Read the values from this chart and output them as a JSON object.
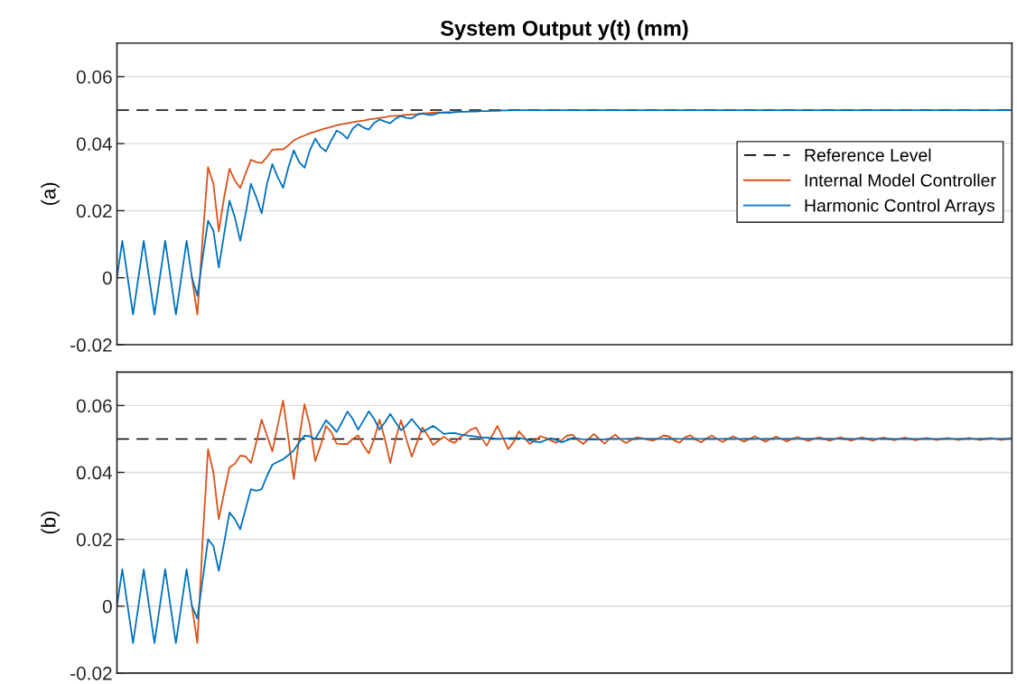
{
  "chart_data": [
    {
      "type": "line",
      "title": "System Output y(t) (mm)",
      "ylabel": "(a)",
      "ylim": [
        -0.02,
        0.07
      ],
      "yticks": [
        -0.02,
        0,
        0.02,
        0.04,
        0.06
      ],
      "grid": "y",
      "legend": "right",
      "line_style": "solid",
      "categories": [
        null,
        null,
        null,
        null,
        null,
        null,
        null,
        null,
        null,
        null,
        null,
        null,
        null,
        null,
        null,
        null,
        null,
        null,
        null,
        null,
        null,
        null,
        null,
        null,
        null,
        null,
        null,
        null,
        null,
        null,
        null,
        null,
        null,
        null,
        null,
        null,
        null,
        null,
        null,
        null,
        null,
        null,
        null,
        null,
        null,
        null,
        null,
        null,
        null,
        null,
        null,
        null,
        null,
        null,
        null,
        null,
        null,
        null,
        null,
        null,
        null,
        null,
        null,
        null,
        null,
        null,
        null,
        null,
        null,
        null,
        null,
        null,
        null,
        null,
        null,
        null,
        null,
        null,
        null,
        null,
        null,
        null,
        null,
        null,
        null,
        null,
        null,
        null,
        null,
        null,
        null,
        null,
        null,
        null,
        null,
        null,
        null,
        null,
        null,
        null,
        null,
        null,
        null,
        null,
        null,
        null,
        null,
        null,
        null,
        null,
        null,
        null,
        null,
        null,
        null,
        null,
        null,
        null,
        null,
        null,
        null,
        null,
        null,
        null,
        null,
        null,
        null,
        null,
        null,
        null,
        null,
        null,
        null,
        null,
        null,
        null,
        null,
        null,
        null,
        null,
        null,
        null,
        null,
        null,
        null,
        null,
        null,
        null,
        null,
        null,
        null,
        null,
        null,
        null,
        null,
        null,
        null,
        null,
        null,
        null,
        null,
        null,
        null,
        null,
        null,
        null,
        null,
        null
      ],
      "ref_lines": [
        {
          "axis": "y",
          "value": 0.05,
          "label": "Reference Level",
          "color": "#000000",
          "line_style": "dashed"
        }
      ],
      "series": [
        {
          "name": "Internal Model Controller",
          "color": "#d95319",
          "values": [
            null,
            null,
            null,
            null,
            null,
            null,
            null,
            null,
            null,
            null,
            null,
            null,
            null,
            null,
            0,
            -0.011,
            0.012,
            0.033,
            0.028,
            0.0138,
            0.024,
            0.0325,
            0.029,
            0.0268,
            0.031,
            0.0352,
            0.0345,
            0.0342,
            0.036,
            0.0382,
            0.0383,
            0.0383,
            0.0395,
            0.041,
            0.0418,
            0.0424,
            0.0431,
            0.0436,
            0.0441,
            0.0446,
            0.045,
            0.0455,
            0.0458,
            0.0461,
            0.0464,
            0.0467,
            0.0469,
            0.0472,
            0.0474,
            0.0477,
            0.0479,
            0.0482,
            0.0483,
            0.0484,
            0.0486,
            0.0487,
            0.0488,
            0.049,
            0.0491,
            0.0492,
            0.0493,
            0.0493,
            0.0494,
            null,
            null,
            null,
            null,
            null,
            null,
            null,
            null,
            null,
            null,
            null,
            null,
            null,
            null,
            null,
            null,
            null,
            null,
            null,
            null,
            null,
            null,
            null,
            null,
            null,
            null,
            null,
            null,
            null,
            null,
            null,
            null,
            null,
            null,
            null,
            null,
            null,
            null,
            null,
            null,
            null,
            null,
            null,
            null,
            null,
            null,
            null,
            null,
            null,
            null,
            null,
            null,
            null,
            null,
            null,
            null,
            null,
            null,
            null,
            null,
            null,
            null,
            null,
            null,
            null,
            null,
            null,
            null,
            null,
            null,
            null,
            null,
            null,
            null,
            null,
            null,
            null,
            null,
            null,
            null,
            null,
            null,
            null,
            null,
            null,
            null,
            null,
            null,
            null,
            null,
            null,
            null,
            null,
            null,
            null,
            null,
            null,
            null,
            null,
            null,
            null,
            null,
            null,
            null,
            null
          ]
        },
        {
          "name": "Harmonic Control Arrays",
          "color": "#0072bd",
          "values": [
            0,
            0.011,
            0,
            -0.011,
            0,
            0.011,
            0,
            -0.011,
            0,
            0.011,
            0,
            -0.011,
            0,
            0.011,
            0,
            -0.0054,
            0.006,
            0.017,
            0.014,
            0.003,
            0.013,
            0.023,
            0.018,
            0.011,
            0.019,
            0.028,
            0.024,
            0.0192,
            0.028,
            0.0339,
            0.03,
            0.0268,
            0.033,
            0.038,
            0.0345,
            0.0328,
            0.038,
            0.0415,
            0.039,
            0.0377,
            0.041,
            0.0439,
            0.043,
            0.0415,
            0.0445,
            0.0458,
            0.0448,
            0.0442,
            0.0462,
            0.0472,
            0.0466,
            0.0461,
            0.0475,
            0.0482,
            0.0477,
            0.0475,
            0.0486,
            0.049,
            0.0486,
            0.0486,
            0.0491,
            0.0493,
            0.0492,
            0.0494,
            0.0495,
            0.0495,
            0.0496,
            0.0496,
            0.0497,
            0.0497,
            0.0498,
            0.0498,
            0.0499,
            0.0499,
            0.05,
            0.05,
            0.05,
            0.05,
            0.05,
            0.05,
            0.05,
            0.05,
            0.05,
            0.05,
            0.05,
            0.05,
            0.05,
            0.05,
            0.05,
            0.05,
            0.05,
            0.05,
            0.05,
            0.05,
            0.05,
            0.05,
            0.05,
            0.05,
            0.05,
            0.05,
            0.05,
            0.05,
            0.05,
            0.05,
            0.05,
            0.05,
            0.05,
            0.05,
            0.05,
            0.05,
            0.05,
            0.05,
            0.05,
            0.05,
            0.05,
            0.05,
            0.05,
            0.05,
            0.05,
            0.05,
            0.05,
            0.05,
            0.05,
            0.05,
            0.05,
            0.05,
            0.05,
            0.05,
            0.05,
            0.05,
            0.05,
            0.05,
            0.05,
            0.05,
            0.05,
            0.05,
            0.05,
            0.05,
            0.05,
            0.05,
            0.05,
            0.05,
            0.05,
            0.05,
            0.05,
            0.05,
            0.05,
            0.05,
            0.05,
            0.05,
            0.05,
            0.05,
            0.05,
            0.05,
            0.05,
            0.05,
            0.05,
            0.05,
            0.05,
            0.05,
            0.05,
            0.05,
            0.05,
            0.05,
            0.05,
            0.05,
            0.05,
            0.05
          ]
        }
      ]
    },
    {
      "type": "line",
      "ylabel": "(b)",
      "ylim": [
        -0.02,
        0.07
      ],
      "yticks": [
        -0.02,
        0,
        0.02,
        0.04,
        0.06
      ],
      "grid": "y",
      "line_style": "solid",
      "categories": [
        null,
        null,
        null,
        null,
        null,
        null,
        null,
        null,
        null,
        null,
        null,
        null,
        null,
        null,
        null,
        null,
        null,
        null,
        null,
        null,
        null,
        null,
        null,
        null,
        null,
        null,
        null,
        null,
        null,
        null,
        null,
        null,
        null,
        null,
        null,
        null,
        null,
        null,
        null,
        null,
        null,
        null,
        null,
        null,
        null,
        null,
        null,
        null,
        null,
        null,
        null,
        null,
        null,
        null,
        null,
        null,
        null,
        null,
        null,
        null,
        null,
        null,
        null,
        null,
        null,
        null,
        null,
        null,
        null,
        null,
        null,
        null,
        null,
        null,
        null,
        null,
        null,
        null,
        null,
        null,
        null,
        null,
        null,
        null,
        null,
        null,
        null,
        null,
        null,
        null,
        null,
        null,
        null,
        null,
        null,
        null,
        null,
        null,
        null,
        null,
        null,
        null,
        null,
        null,
        null,
        null,
        null,
        null,
        null,
        null,
        null,
        null,
        null,
        null,
        null,
        null,
        null,
        null,
        null,
        null,
        null,
        null,
        null,
        null,
        null,
        null,
        null,
        null,
        null,
        null,
        null,
        null,
        null,
        null,
        null,
        null,
        null,
        null,
        null,
        null,
        null,
        null,
        null,
        null,
        null,
        null,
        null,
        null,
        null,
        null,
        null,
        null,
        null,
        null,
        null,
        null,
        null,
        null,
        null,
        null,
        null,
        null,
        null,
        null,
        null,
        null,
        null,
        null
      ],
      "ref_lines": [
        {
          "axis": "y",
          "value": 0.05,
          "color": "#000000",
          "line_style": "dashed"
        }
      ],
      "series": [
        {
          "color": "#d95319",
          "values": [
            null,
            null,
            null,
            null,
            null,
            null,
            null,
            null,
            null,
            null,
            null,
            null,
            null,
            null,
            0,
            -0.011,
            0.02,
            0.047,
            0.04,
            0.026,
            0.034,
            0.0415,
            0.0426,
            0.045,
            0.0448,
            0.0428,
            0.049,
            0.0558,
            0.051,
            0.0463,
            0.054,
            0.0615,
            0.05,
            0.038,
            0.05,
            0.0604,
            0.054,
            0.0434,
            0.048,
            0.0539,
            0.052,
            0.0486,
            0.0485,
            0.0485,
            0.05,
            0.0511,
            0.048,
            0.0457,
            0.05,
            0.0558,
            0.05,
            0.0428,
            0.05,
            0.0556,
            0.05,
            0.0447,
            0.049,
            0.0534,
            0.051,
            0.0482,
            0.0495,
            0.0507,
            0.0495,
            0.0488,
            0.0505,
            0.0515,
            0.0528,
            0.0534,
            0.0505,
            0.048,
            0.051,
            0.0539,
            0.0505,
            0.047,
            0.049,
            0.0523,
            0.0505,
            0.0485,
            0.0495,
            0.0508,
            0.0503,
            0.0495,
            0.0489,
            0.0497,
            0.051,
            0.0513,
            0.0497,
            0.0485,
            0.05,
            0.0515,
            0.05,
            0.0486,
            0.0502,
            0.0513,
            0.0498,
            0.0488,
            0.0497,
            0.0505,
            0.0502,
            0.0498,
            0.0495,
            0.0502,
            0.051,
            0.0508,
            0.0495,
            0.0489,
            0.0505,
            0.0511,
            0.0498,
            0.049,
            0.0502,
            0.051,
            0.05,
            0.0491,
            0.05,
            0.0508,
            0.05,
            0.0492,
            0.05,
            0.0508,
            0.05,
            0.0492,
            0.05,
            0.0507,
            0.05,
            0.0493,
            0.05,
            0.0506,
            0.05,
            0.0494,
            0.05,
            0.0505,
            0.05,
            0.0495,
            0.05,
            0.0505,
            0.05,
            0.0495,
            0.05,
            0.0505,
            0.05,
            0.0495,
            0.05,
            0.0504,
            0.05,
            0.0496,
            0.05,
            0.0504,
            0.05,
            0.0496,
            0.05,
            0.0503,
            0.05,
            0.0497,
            0.05,
            0.0503,
            0.05,
            0.0497,
            0.05,
            0.0503,
            0.05,
            0.0497,
            0.05,
            0.0503,
            0.05,
            0.0497,
            0.05,
            0.0503
          ]
        },
        {
          "color": "#0072bd",
          "values": [
            0,
            0.011,
            0,
            -0.011,
            0,
            0.011,
            0,
            -0.011,
            0,
            0.011,
            0,
            -0.011,
            0,
            0.011,
            0,
            -0.0037,
            0.008,
            0.02,
            0.018,
            0.0106,
            0.019,
            0.028,
            0.026,
            0.023,
            0.029,
            0.035,
            0.0345,
            0.035,
            0.039,
            0.0423,
            0.0432,
            0.0439,
            0.0452,
            0.0466,
            0.049,
            0.051,
            0.0508,
            0.05,
            0.0528,
            0.0556,
            0.054,
            0.0521,
            0.055,
            0.0582,
            0.056,
            0.0528,
            0.0555,
            0.0583,
            0.056,
            0.0528,
            0.055,
            0.0575,
            0.055,
            0.0526,
            0.054,
            0.056,
            0.054,
            0.0521,
            0.053,
            0.0539,
            0.0528,
            0.0515,
            0.0517,
            0.0518,
            0.0514,
            0.0511,
            0.0509,
            0.0507,
            0.0505,
            0.0504,
            0.0502,
            0.05,
            0.0501,
            0.0502,
            0.0503,
            0.0503,
            0.05,
            0.0496,
            0.0492,
            0.049,
            0.0497,
            0.0502,
            0.0497,
            0.049,
            0.0496,
            0.0503,
            0.0501,
            0.0499,
            0.0498,
            0.0498,
            0.0499,
            0.0499,
            0.05,
            0.05,
            0.05,
            0.05,
            0.05,
            0.05,
            0.05,
            0.05,
            0.05,
            0.05,
            0.05,
            0.05,
            0.05,
            0.05,
            0.05,
            0.05,
            0.05,
            0.05,
            0.05,
            0.05,
            0.05,
            0.05,
            0.05,
            0.05,
            0.05,
            0.05,
            0.05,
            0.05,
            0.05,
            0.05,
            0.05,
            0.05,
            0.05,
            0.05,
            0.05,
            0.05,
            0.05,
            0.05,
            0.05,
            0.05,
            0.05,
            0.05,
            0.05,
            0.05,
            0.05,
            0.05,
            0.05,
            0.05,
            0.05,
            0.05,
            0.05,
            0.05,
            0.05,
            0.05,
            0.05,
            0.05,
            0.05,
            0.05,
            0.05,
            0.05,
            0.05,
            0.05,
            0.05,
            0.05,
            0.05,
            0.05,
            0.05,
            0.05,
            0.05,
            0.05,
            0.05,
            0.05,
            0.05,
            0.05,
            0.05,
            0.05
          ]
        }
      ]
    }
  ]
}
